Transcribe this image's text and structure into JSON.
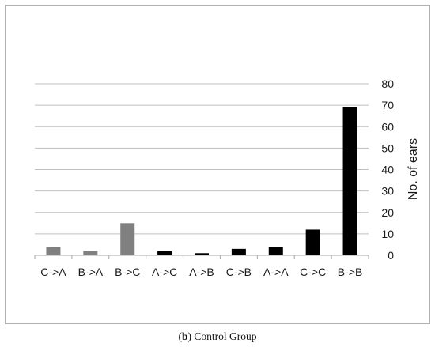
{
  "chart_data": {
    "type": "bar",
    "categories": [
      "C->A",
      "B->A",
      "B->C",
      "A->C",
      "A->B",
      "C->B",
      "A->A",
      "C->C",
      "B->B"
    ],
    "values": [
      4,
      2,
      15,
      2,
      1,
      3,
      4,
      12,
      69
    ],
    "bar_colors": [
      "#808080",
      "#808080",
      "#808080",
      "#000000",
      "#000000",
      "#000000",
      "#000000",
      "#000000",
      "#000000"
    ],
    "ylabel": "No. of ears",
    "xlabel": "",
    "title": "",
    "ylim": [
      0,
      80
    ],
    "yticks": [
      0,
      10,
      20,
      30,
      40,
      50,
      60,
      70,
      80
    ],
    "y_axis_side": "right",
    "grid": true,
    "legend": false
  },
  "caption": {
    "prefix": "(",
    "label": "b",
    "suffix": ") Control Group"
  }
}
